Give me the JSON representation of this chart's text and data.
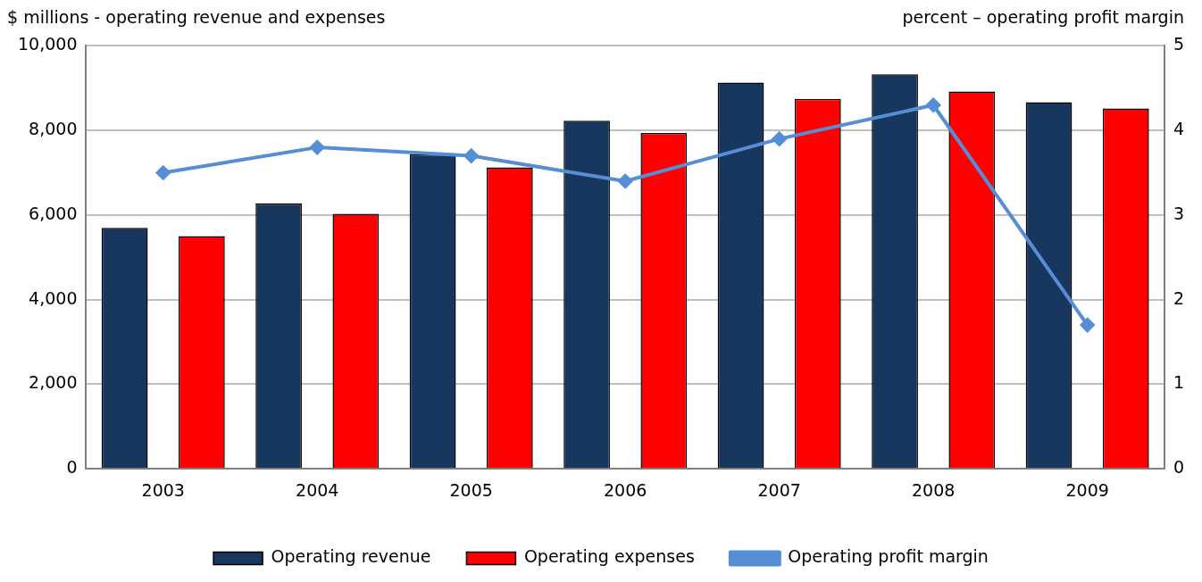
{
  "chart_data": {
    "type": "bar",
    "ylabel": "$ millions - operating revenue and expenses",
    "y2label": "percent – operating profit margin",
    "categories": [
      "2003",
      "2004",
      "2005",
      "2006",
      "2007",
      "2008",
      "2009"
    ],
    "series": [
      {
        "name": "Operating revenue",
        "color": "#17375e",
        "values": [
          5700,
          6280,
          7440,
          8230,
          9130,
          9330,
          8670
        ]
      },
      {
        "name": "Operating expenses",
        "color": "#ff0000",
        "values": [
          5500,
          6030,
          7130,
          7940,
          8750,
          8920,
          8520
        ]
      },
      {
        "name": "Operating profit margin",
        "type": "line",
        "axis": "y2",
        "color": "#558ed5",
        "marker": "diamond",
        "values": [
          3.5,
          3.8,
          3.7,
          3.4,
          3.9,
          4.3,
          1.7
        ]
      }
    ],
    "ylim": [
      0,
      10000
    ],
    "yticks": [
      {
        "value": 0,
        "label": "0"
      },
      {
        "value": 2000,
        "label": "2,000"
      },
      {
        "value": 4000,
        "label": "4,000"
      },
      {
        "value": 6000,
        "label": "6,000"
      },
      {
        "value": 8000,
        "label": "8,000"
      },
      {
        "value": 10000,
        "label": "10,000"
      }
    ],
    "y2lim": [
      0,
      5
    ],
    "y2ticks": [
      0,
      1,
      2,
      3,
      4,
      5
    ],
    "grid": "y",
    "legend": "bottom"
  }
}
